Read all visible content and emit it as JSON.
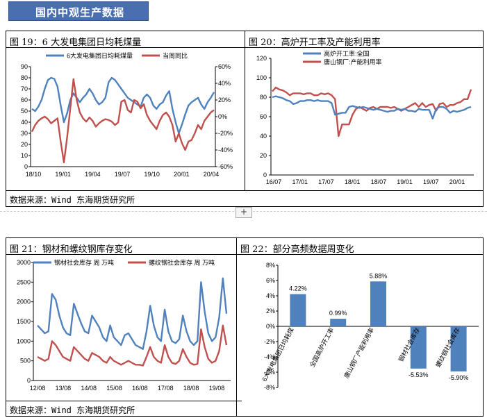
{
  "banner": "国内中观生产数据",
  "source_text": "数据来源：Wind  东海期货研究所",
  "add_button": "+",
  "chart19": {
    "title": "图 19：6 大发电集团日均耗煤量",
    "legend": [
      "6大发电集团日均耗煤量",
      "当周同比"
    ],
    "colors": {
      "coal": "#4f81bd",
      "yoy": "#c0504d"
    },
    "left_ticks": [
      "90",
      "80",
      "70",
      "60",
      "50",
      "40",
      "30",
      "20",
      "10",
      "0"
    ],
    "right_ticks": [
      "60%",
      "40%",
      "20%",
      "0%",
      "-20%",
      "-40%",
      "-60%"
    ],
    "x_ticks": [
      "18/10",
      "19/01",
      "19/04",
      "19/07",
      "19/10",
      "20/01",
      "20/04"
    ]
  },
  "chart20": {
    "title": "图 20：高炉开工率及产能利用率",
    "legend": [
      "高炉开工率:全国",
      "唐山钢厂:产能利用率"
    ],
    "colors": {
      "a": "#4f81bd",
      "b": "#c0504d"
    },
    "y_ticks": [
      "120",
      "100",
      "80",
      "60",
      "40",
      "20",
      "0"
    ],
    "x_ticks": [
      "16/07",
      "17/01",
      "17/07",
      "18/01",
      "18/07",
      "19/01",
      "19/07",
      "20/01"
    ]
  },
  "chart21": {
    "title": "图 21：钢材和螺纹钢库存变化",
    "legend": [
      "钢材社会库存 周 万吨",
      "螺纹钢社会库存 周 万吨"
    ],
    "colors": {
      "a": "#4f81bd",
      "b": "#c0504d"
    },
    "y_ticks": [
      "3000",
      "2500",
      "2000",
      "1500",
      "1000",
      "500",
      "0"
    ],
    "x_ticks": [
      "12/08",
      "13/08",
      "14/08",
      "15/08",
      "16/08",
      "17/08",
      "18/08",
      "19/08"
    ]
  },
  "chart22": {
    "title": "图 22：部分高频数据周变化",
    "color": "#4f81bd",
    "y_ticks": [
      "8%",
      "6%",
      "4%",
      "2%",
      "0%",
      "-2%",
      "-4%",
      "-6%",
      "-8%"
    ]
  },
  "chart_data": [
    {
      "type": "line",
      "title": "图 19：6 大发电集团日均耗煤量",
      "x_ticks": [
        "18/10",
        "19/01",
        "19/04",
        "19/07",
        "19/10",
        "20/01",
        "20/04"
      ],
      "ylim_left": [
        0,
        90
      ],
      "ylim_right": [
        -0.6,
        0.6
      ],
      "series": [
        {
          "name": "6大发电集团日均耗煤量",
          "axis": "left",
          "values": [
            52,
            50,
            54,
            60,
            70,
            78,
            80,
            79,
            72,
            55,
            40,
            48,
            60,
            66,
            62,
            58,
            62,
            65,
            70,
            66,
            60,
            56,
            58,
            62,
            76,
            80,
            78,
            74,
            70,
            66,
            62,
            60,
            58,
            56,
            54,
            62,
            65,
            62,
            55,
            52,
            56,
            58,
            64,
            68,
            52,
            40,
            30,
            38,
            47,
            55,
            58,
            60,
            62,
            56,
            52,
            58,
            62,
            67
          ]
        },
        {
          "name": "当周同比",
          "axis": "right",
          "values": [
            -0.18,
            -0.1,
            -0.05,
            -0.02,
            0.0,
            -0.03,
            -0.08,
            -0.05,
            -0.02,
            -0.3,
            -0.55,
            -0.25,
            0.1,
            0.45,
            0.2,
            0.05,
            -0.02,
            -0.06,
            -0.01,
            -0.05,
            -0.12,
            -0.08,
            -0.05,
            -0.03,
            -0.04,
            -0.06,
            -0.1,
            -0.07,
            0.18,
            0.2,
            0.08,
            0.05,
            0.2,
            0.18,
            0.1,
            0.15,
            0.02,
            -0.05,
            -0.1,
            -0.15,
            -0.05,
            0.02,
            0.05,
            0.0,
            -0.1,
            -0.3,
            -0.2,
            -0.32,
            -0.4,
            -0.3,
            -0.28,
            -0.2,
            -0.1,
            -0.15,
            -0.05,
            0.0,
            0.05,
            0.08
          ]
        }
      ]
    },
    {
      "type": "line",
      "title": "图 20：高炉开工率及产能利用率",
      "x_ticks": [
        "16/07",
        "17/01",
        "17/07",
        "18/01",
        "18/07",
        "19/01",
        "19/07",
        "20/01"
      ],
      "ylim": [
        0,
        120
      ],
      "series": [
        {
          "name": "高炉开工率:全国",
          "values": [
            80,
            81,
            80,
            79,
            77,
            76,
            73,
            74,
            76,
            76,
            77,
            77,
            76,
            77,
            76,
            76,
            76,
            74,
            62,
            63,
            64,
            64,
            70,
            71,
            70,
            69,
            70,
            69,
            68,
            67,
            68,
            67,
            66,
            65,
            66,
            66,
            68,
            67,
            68,
            66,
            66,
            65,
            68,
            67,
            67,
            67,
            58,
            68,
            70,
            70,
            68,
            64,
            66,
            65,
            66,
            67,
            69,
            70
          ]
        },
        {
          "name": "唐山钢厂:产能利用率",
          "values": [
            86,
            90,
            88,
            87,
            85,
            82,
            84,
            84,
            84,
            83,
            84,
            84,
            82,
            82,
            84,
            83,
            84,
            82,
            78,
            40,
            52,
            52,
            52,
            62,
            68,
            70,
            68,
            66,
            69,
            70,
            68,
            70,
            70,
            70,
            69,
            70,
            68,
            66,
            68,
            70,
            72,
            74,
            70,
            74,
            70,
            72,
            73,
            66,
            73,
            74,
            70,
            72,
            72,
            74,
            75,
            78,
            78,
            88
          ]
        }
      ]
    },
    {
      "type": "line",
      "title": "图 21：钢材和螺纹钢库存变化",
      "x_ticks": [
        "12/08",
        "13/08",
        "14/08",
        "15/08",
        "16/08",
        "17/08",
        "18/08",
        "19/08"
      ],
      "ylim": [
        0,
        3000
      ],
      "series": [
        {
          "name": "钢材社会库存 周 万吨",
          "values": [
            1400,
            1300,
            1200,
            1250,
            2200,
            2050,
            1650,
            1350,
            1200,
            1150,
            1950,
            1700,
            1450,
            1250,
            1200,
            1650,
            1500,
            1350,
            1100,
            1000,
            1400,
            1100,
            1000,
            900,
            1150,
            1200,
            1050,
            900,
            850,
            800,
            1250,
            1900,
            1400,
            1100,
            1000,
            1800,
            1250,
            1000,
            950,
            1050,
            1650,
            1250,
            1000,
            900,
            1000,
            2500,
            1750,
            1200,
            1000,
            1100,
            1600,
            2600,
            1700
          ]
        },
        {
          "name": "螺纹钢社会库存 周 万吨",
          "values": [
            600,
            550,
            500,
            550,
            1000,
            900,
            750,
            600,
            550,
            500,
            850,
            750,
            650,
            550,
            500,
            700,
            650,
            600,
            500,
            450,
            600,
            500,
            450,
            400,
            450,
            500,
            450,
            400,
            400,
            380,
            600,
            850,
            600,
            500,
            450,
            900,
            600,
            450,
            420,
            500,
            800,
            600,
            450,
            400,
            420,
            1300,
            850,
            550,
            450,
            500,
            750,
            1400,
            900
          ]
        }
      ]
    },
    {
      "type": "bar",
      "title": "图 22：部分高频数据周变化",
      "categories": [
        "6大发电集团日均耗煤",
        "全国高炉开工率",
        "唐山钢厂产能利用率",
        "钢材社会库存",
        "螺纹钢社会库存"
      ],
      "values": [
        4.22,
        0.99,
        5.88,
        -5.53,
        -5.9
      ],
      "value_labels": [
        "4.22%",
        "0.99%",
        "5.88%",
        "-5.53%",
        "-5.90%"
      ],
      "ylim": [
        -8,
        8
      ]
    }
  ]
}
